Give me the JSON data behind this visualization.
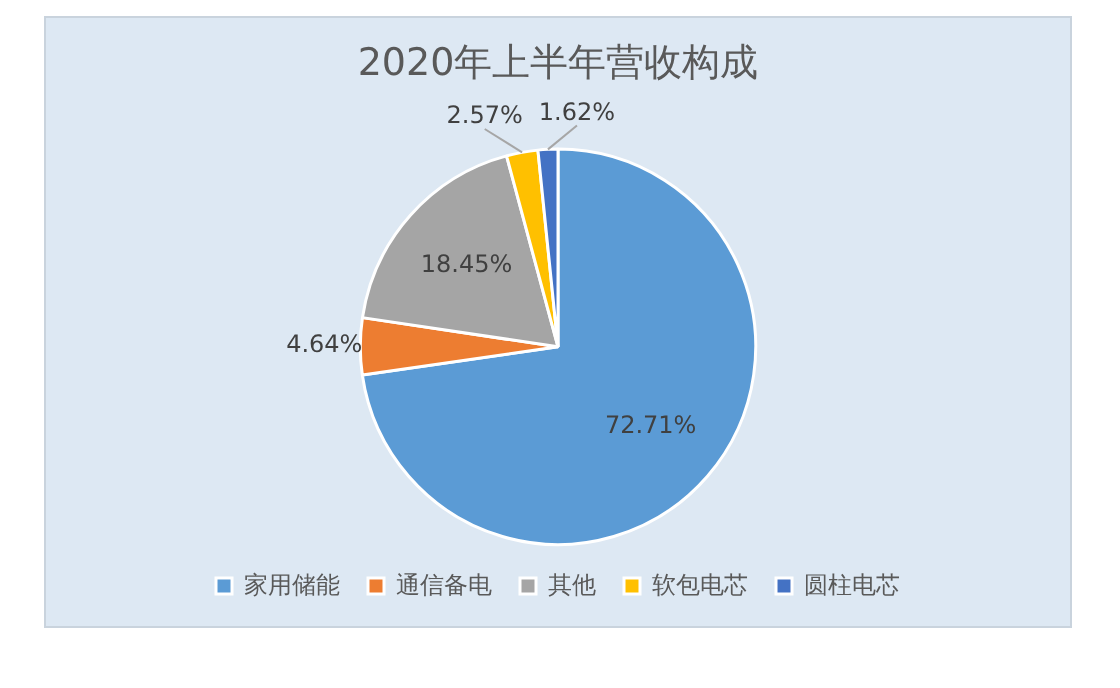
{
  "chart_data": {
    "type": "pie",
    "title": "2020年上半年营收构成",
    "categories": [
      "家用储能",
      "通信备电",
      "其他",
      "软包电芯",
      "圆柱电芯"
    ],
    "values": [
      72.71,
      4.64,
      18.45,
      2.57,
      1.62
    ],
    "colors": [
      "#5b9bd5",
      "#ed7d31",
      "#a5a5a5",
      "#ffc000",
      "#4472c4"
    ],
    "value_labels": [
      "72.71%",
      "4.64%",
      "18.45%",
      "2.57%",
      "1.62%"
    ],
    "legend": "bottom"
  }
}
